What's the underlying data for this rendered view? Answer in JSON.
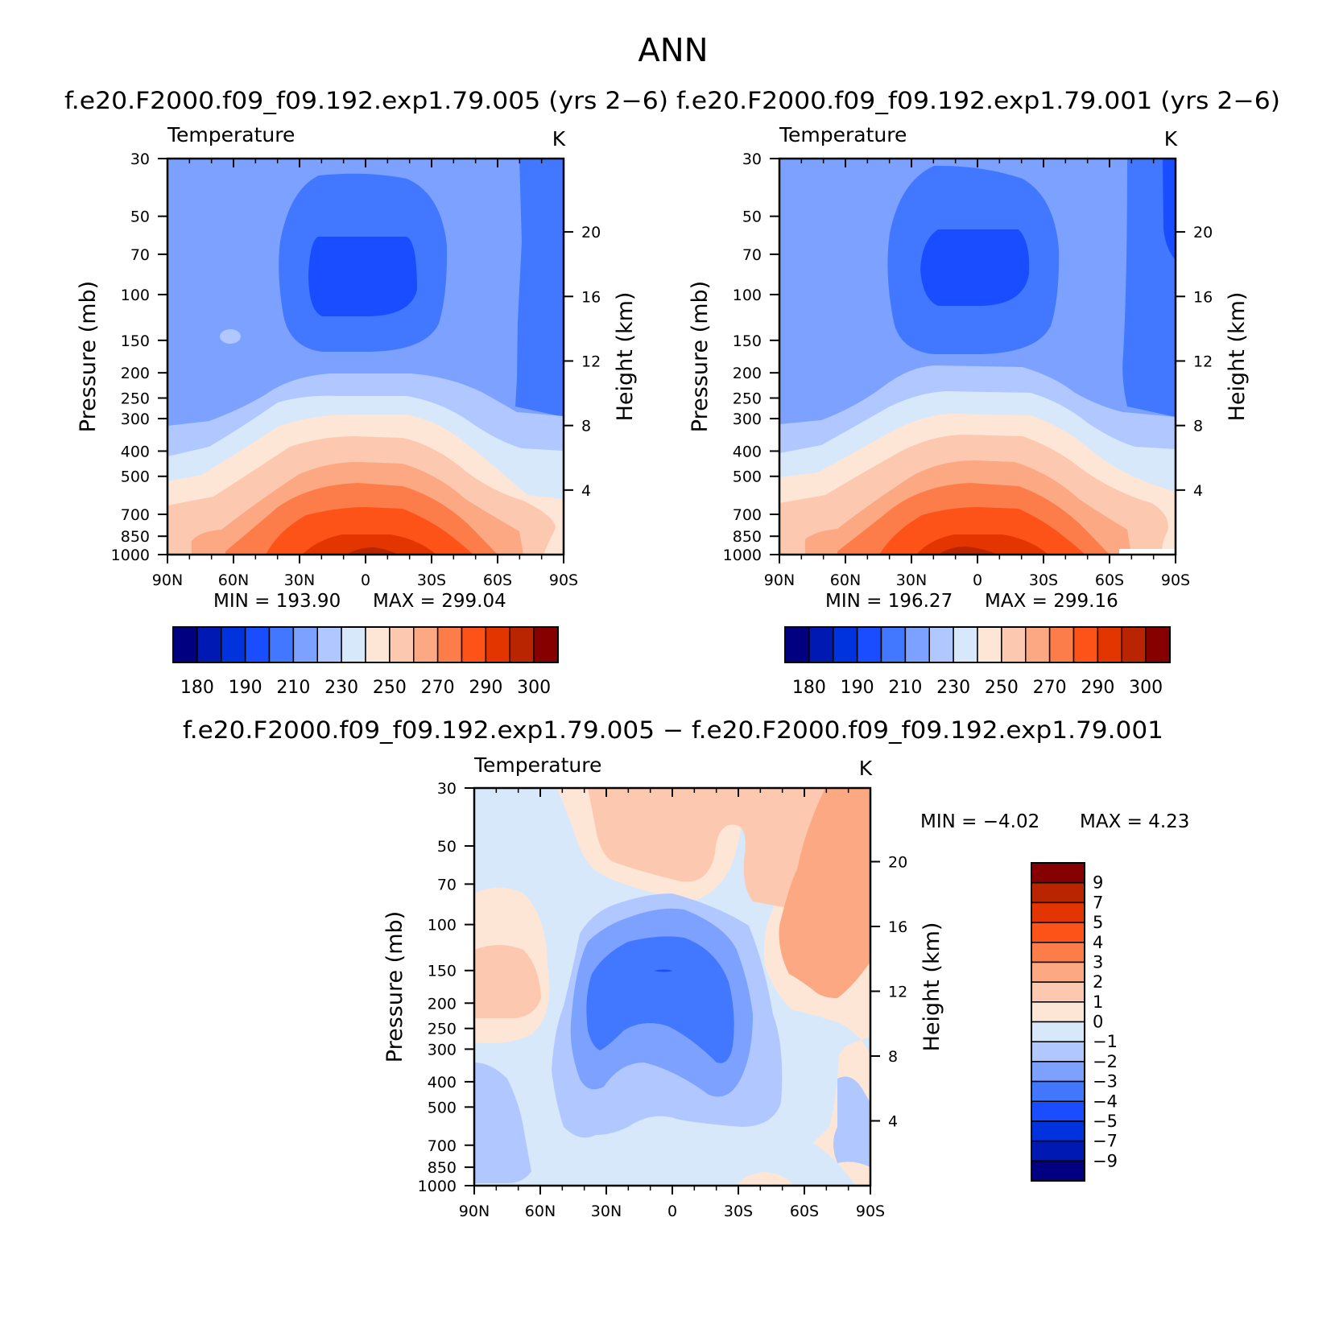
{
  "page": {
    "title": "ANN",
    "diff_title": "f.e20.F2000.f09_f09.192.exp1.79.005  −  f.e20.F2000.f09_f09.192.exp1.79.001"
  },
  "panels": [
    {
      "title": "f.e20.F2000.f09_f09.192.exp1.79.005 (yrs 2−6)",
      "variable": "Temperature",
      "units": "K",
      "ylabel_left": "Pressure (mb)",
      "ylabel_right": "Height (km)",
      "min_label": "MIN",
      "max_label": "MAX",
      "min_value": "193.90",
      "max_value": "299.04"
    },
    {
      "title": "f.e20.F2000.f09_f09.192.exp1.79.001 (yrs 2−6)",
      "variable": "Temperature",
      "units": "K",
      "ylabel_left": "Pressure (mb)",
      "ylabel_right": "Height (km)",
      "min_label": "MIN",
      "max_label": "MAX",
      "min_value": "196.27",
      "max_value": "299.16"
    },
    {
      "title": "",
      "variable": "Temperature",
      "units": "K",
      "ylabel_left": "Pressure (mb)",
      "ylabel_right": "Height (km)",
      "min_label": "MIN",
      "max_label": "MAX",
      "min_value": "−4.02",
      "max_value": "4.23"
    }
  ],
  "axes": {
    "x_ticks": [
      "90N",
      "60N",
      "30N",
      "0",
      "30S",
      "60S",
      "90S"
    ],
    "pressure_ticks": [
      "30",
      "50",
      "70",
      "100",
      "150",
      "200",
      "250",
      "300",
      "400",
      "500",
      "700",
      "850",
      "1000"
    ],
    "height_ticks": [
      "20",
      "16",
      "12",
      "8",
      "4"
    ]
  },
  "colorbars": {
    "temperature": {
      "labels": [
        "180",
        "190",
        "210",
        "230",
        "250",
        "270",
        "290",
        "300"
      ],
      "colors": [
        "#000080",
        "#0019b3",
        "#0033dd",
        "#1a4dff",
        "#4278ff",
        "#7ca1ff",
        "#b0c8ff",
        "#d8e8fb",
        "#fde6d6",
        "#fcc8b0",
        "#fca882",
        "#fc7d4a",
        "#fd5218",
        "#e23500",
        "#b82500",
        "#870000"
      ]
    },
    "difference": {
      "labels": [
        "9",
        "7",
        "5",
        "4",
        "3",
        "2",
        "1",
        "0",
        "−1",
        "−2",
        "−3",
        "−4",
        "−5",
        "−7",
        "−9"
      ],
      "colors": [
        "#870000",
        "#b82500",
        "#e23500",
        "#fd5218",
        "#fc7d4a",
        "#fca882",
        "#fcc8b0",
        "#fde6d6",
        "#d8e8fb",
        "#b0c8ff",
        "#7ca1ff",
        "#4278ff",
        "#1a4dff",
        "#0033dd",
        "#0019b3",
        "#000080"
      ]
    }
  },
  "chart_data": [
    {
      "type": "contour",
      "title": "f.e20.F2000.f09_f09.192.exp1.79.005 (yrs 2−6)",
      "variable": "Temperature",
      "units": "K",
      "x": [
        "90N",
        "60N",
        "30N",
        "0",
        "30S",
        "60S",
        "90S"
      ],
      "y_pressure_mb": [
        30,
        50,
        70,
        100,
        150,
        200,
        250,
        300,
        400,
        500,
        700,
        850,
        1000
      ],
      "min": 193.9,
      "max": 299.04,
      "levels": [
        180,
        185,
        190,
        200,
        210,
        220,
        230,
        240,
        250,
        260,
        270,
        280,
        290,
        295,
        300
      ]
    },
    {
      "type": "contour",
      "title": "f.e20.F2000.f09_f09.192.exp1.79.001 (yrs 2−6)",
      "variable": "Temperature",
      "units": "K",
      "x": [
        "90N",
        "60N",
        "30N",
        "0",
        "30S",
        "60S",
        "90S"
      ],
      "y_pressure_mb": [
        30,
        50,
        70,
        100,
        150,
        200,
        250,
        300,
        400,
        500,
        700,
        850,
        1000
      ],
      "min": 196.27,
      "max": 299.16,
      "levels": [
        180,
        185,
        190,
        200,
        210,
        220,
        230,
        240,
        250,
        260,
        270,
        280,
        290,
        295,
        300
      ]
    },
    {
      "type": "contour",
      "title": "f.e20.F2000.f09_f09.192.exp1.79.005 − f.e20.F2000.f09_f09.192.exp1.79.001",
      "variable": "Temperature",
      "units": "K",
      "x": [
        "90N",
        "60N",
        "30N",
        "0",
        "30S",
        "60S",
        "90S"
      ],
      "y_pressure_mb": [
        30,
        50,
        70,
        100,
        150,
        200,
        250,
        300,
        400,
        500,
        700,
        850,
        1000
      ],
      "min": -4.02,
      "max": 4.23,
      "levels": [
        -9,
        -7,
        -5,
        -4,
        -3,
        -2,
        -1,
        0,
        1,
        2,
        3,
        4,
        5,
        7,
        9
      ]
    }
  ]
}
